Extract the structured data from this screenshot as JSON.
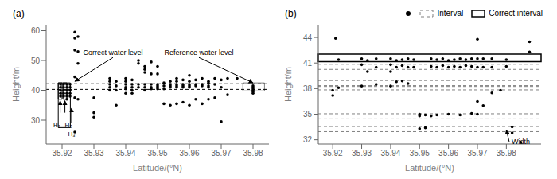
{
  "chart_data": [
    {
      "type": "scatter",
      "title": "(a)",
      "x_label": "Latitude/(°N)",
      "y_label": "Height/m",
      "xlim": [
        35.915,
        35.985
      ],
      "ylim": [
        22,
        62
      ],
      "xticks": [
        35.92,
        35.93,
        35.94,
        35.95,
        35.96,
        35.97,
        35.98
      ],
      "yticks": [
        30,
        40,
        50,
        60
      ],
      "grid": false,
      "color": "black",
      "marker": "circle",
      "x": [
        35.9195,
        35.9195,
        35.9195,
        35.9195,
        35.9195,
        35.9205,
        35.9205,
        35.9205,
        35.9205,
        35.9205,
        35.9215,
        35.9215,
        35.9215,
        35.9215,
        35.9215,
        35.9215,
        35.9225,
        35.9225,
        35.9225,
        35.9225,
        35.9225,
        35.924,
        35.924,
        35.924,
        35.924,
        35.924,
        35.924,
        35.925,
        35.925,
        35.925,
        35.925,
        35.93,
        35.93,
        35.93,
        35.935,
        35.935,
        35.935,
        35.935,
        35.935,
        35.937,
        35.937,
        35.937,
        35.937,
        35.94,
        35.94,
        35.94,
        35.94,
        35.94,
        35.94,
        35.942,
        35.942,
        35.942,
        35.942,
        35.942,
        35.944,
        35.944,
        35.944,
        35.944,
        35.946,
        35.946,
        35.946,
        35.946,
        35.946,
        35.946,
        35.948,
        35.948,
        35.948,
        35.948,
        35.948,
        35.95,
        35.95,
        35.95,
        35.95,
        35.95,
        35.95,
        35.952,
        35.952,
        35.952,
        35.952,
        35.954,
        35.954,
        35.954,
        35.954,
        35.954,
        35.956,
        35.956,
        35.956,
        35.956,
        35.956,
        35.956,
        35.958,
        35.958,
        35.958,
        35.958,
        35.958,
        35.96,
        35.96,
        35.96,
        35.96,
        35.96,
        35.96,
        35.962,
        35.962,
        35.962,
        35.962,
        35.964,
        35.964,
        35.964,
        35.964,
        35.966,
        35.966,
        35.966,
        35.966,
        35.966,
        35.968,
        35.968,
        35.968,
        35.97,
        35.97,
        35.97,
        35.972,
        35.972,
        35.975,
        35.98,
        35.98,
        35.98,
        35.98,
        35.98,
        35.98
      ],
      "values": [
        42.0,
        41.0,
        40.0,
        39.0,
        38.0,
        42.0,
        41.0,
        40.0,
        39.0,
        38.0,
        42.0,
        41.0,
        40.0,
        39.0,
        38.0,
        37.0,
        42.0,
        41.0,
        40.0,
        39.0,
        38.0,
        59.5,
        57.5,
        53.5,
        44.5,
        37.5,
        26.0,
        58.0,
        53.0,
        49.0,
        37.0,
        37.5,
        32.5,
        31.0,
        44.0,
        43.0,
        42.0,
        41.0,
        40.0,
        43.0,
        41.5,
        40.0,
        35.0,
        44.0,
        43.0,
        42.0,
        41.0,
        40.5,
        39.0,
        43.5,
        42.0,
        41.0,
        40.0,
        39.0,
        50.0,
        49.0,
        42.0,
        41.0,
        48.0,
        47.0,
        46.0,
        42.0,
        41.0,
        40.0,
        49.5,
        45.5,
        42.0,
        41.0,
        40.5,
        48.0,
        45.5,
        42.0,
        41.5,
        41.0,
        40.5,
        42.5,
        41.5,
        40.5,
        35.5,
        43.0,
        42.0,
        41.5,
        41.0,
        35.0,
        44.0,
        43.0,
        42.0,
        41.5,
        41.0,
        35.5,
        43.5,
        42.0,
        41.5,
        41.0,
        36.0,
        45.0,
        43.0,
        42.0,
        41.5,
        41.0,
        35.0,
        43.5,
        42.0,
        41.5,
        37.0,
        44.0,
        42.0,
        41.5,
        35.5,
        43.0,
        42.5,
        41.5,
        41.0,
        37.0,
        44.0,
        42.0,
        37.5,
        43.5,
        41.0,
        29.5,
        44.0,
        38.5,
        44.0,
        41.5,
        41.0,
        40.5,
        40.0,
        39.5,
        39.0
      ],
      "reference_lines": {
        "values": [
          40.3,
          42.2
        ],
        "color": "black",
        "line_style": "dashed"
      },
      "boxes": [
        {
          "x1": 35.9188,
          "x2": 35.92,
          "y1": 37.0,
          "y2": 42.5,
          "color": "black"
        },
        {
          "x1": 35.9203,
          "x2": 35.9215,
          "y1": 37.0,
          "y2": 42.5,
          "color": "black"
        },
        {
          "x1": 35.9188,
          "x2": 35.9226,
          "y1": 27.5,
          "y2": 42.5,
          "color": "black"
        },
        {
          "x1": 35.9768,
          "x2": 35.9836,
          "y1": 39.8,
          "y2": 42.5,
          "color": "gray"
        }
      ],
      "annotations": [
        {
          "text": "Correct water level",
          "x": 35.936,
          "y": 51.0,
          "arrow_x": 35.924,
          "arrow_y": 43.0
        },
        {
          "text": "Reference water level",
          "x": 35.963,
          "y": 51.0,
          "arrow_x": 35.98,
          "arrow_y": 42.5
        }
      ],
      "arrows": [
        {
          "x": 35.9194,
          "y": 32.5,
          "arrow_x": 35.9194,
          "arrow_y": 36.5
        },
        {
          "x": 35.9209,
          "y": 32.5,
          "arrow_x": 35.9209,
          "arrow_y": 36.5
        },
        {
          "x": 35.923,
          "y": 29.0,
          "arrow_x": 35.923,
          "arrow_y": 34.0
        }
      ],
      "labels": [
        {
          "text": "H₁",
          "x": 35.9194,
          "y": 29.5
        },
        {
          "text": "H₂",
          "x": 35.9209,
          "y": 29.5
        },
        {
          "text": "H₃",
          "x": 35.923,
          "y": 26.5
        }
      ]
    },
    {
      "type": "scatter",
      "title": "(b)",
      "x_label": "Latitude/(°N)",
      "y_label": "Height/m",
      "xlim": [
        35.915,
        35.992
      ],
      "ylim": [
        31.5,
        45.5
      ],
      "xticks": [
        35.92,
        35.93,
        35.94,
        35.95,
        35.96,
        35.97,
        35.98
      ],
      "yticks": [
        32,
        35,
        38,
        41,
        44
      ],
      "grid": false,
      "color": "black",
      "marker": "circle",
      "legend": "upper right",
      "x": [
        35.92,
        35.92,
        35.921,
        35.922,
        35.922,
        35.93,
        35.93,
        35.93,
        35.932,
        35.932,
        35.935,
        35.935,
        35.935,
        35.94,
        35.94,
        35.94,
        35.94,
        35.942,
        35.942,
        35.942,
        35.944,
        35.944,
        35.944,
        35.946,
        35.946,
        35.946,
        35.948,
        35.948,
        35.95,
        35.95,
        35.95,
        35.952,
        35.952,
        35.954,
        35.954,
        35.954,
        35.956,
        35.956,
        35.956,
        35.958,
        35.958,
        35.96,
        35.96,
        35.96,
        35.962,
        35.962,
        35.964,
        35.964,
        35.964,
        35.966,
        35.966,
        35.968,
        35.968,
        35.968,
        35.97,
        35.97,
        35.97,
        35.97,
        35.97,
        35.972,
        35.972,
        35.972,
        35.975,
        35.975,
        35.975,
        35.978,
        35.98,
        35.98,
        35.982,
        35.982,
        35.985,
        35.988,
        35.988
      ],
      "values": [
        37.8,
        37.2,
        43.9,
        41.4,
        38.1,
        41.5,
        40.8,
        38.3,
        41.3,
        40.0,
        41.5,
        40.5,
        38.5,
        41.5,
        40.8,
        40.0,
        38.3,
        41.3,
        40.5,
        38.8,
        41.4,
        40.7,
        38.9,
        41.5,
        40.5,
        38.6,
        41.4,
        40.5,
        35.0,
        34.8,
        33.3,
        34.9,
        33.4,
        41.5,
        40.6,
        34.8,
        41.4,
        40.5,
        34.9,
        41.5,
        40.7,
        41.3,
        40.5,
        35.0,
        41.4,
        40.6,
        41.5,
        40.5,
        34.9,
        41.4,
        40.7,
        41.5,
        40.6,
        35.1,
        43.8,
        41.5,
        40.5,
        36.5,
        35.0,
        41.5,
        40.5,
        36.0,
        41.5,
        40.5,
        37.5,
        37.8,
        41.4,
        40.6,
        33.5,
        32.8,
        31.7,
        43.5,
        42.3
      ],
      "intervals": {
        "name": "Interval",
        "color": "gray",
        "line_style": "dashed",
        "values": [
          [
            40.25,
            40.85
          ],
          [
            38.35,
            38.95
          ],
          [
            37.85,
            38.25
          ],
          [
            34.45,
            35.05
          ],
          [
            32.95,
            33.55
          ]
        ]
      },
      "correct_interval": {
        "name": "Correct interval",
        "color": "black",
        "line_style": "solid",
        "values": [
          41.15,
          42.05
        ]
      },
      "annotations": [
        {
          "text": "Width",
          "x": 35.981,
          "y": 31.75,
          "arrow_x": 35.98,
          "arrow_y": 33.15
        }
      ]
    }
  ]
}
